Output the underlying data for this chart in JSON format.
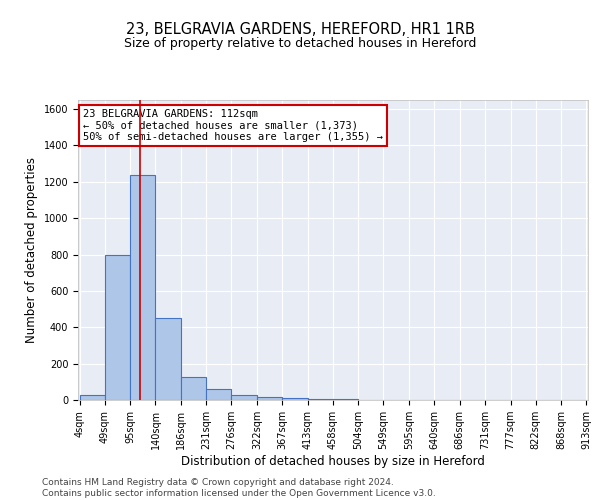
{
  "title": "23, BELGRAVIA GARDENS, HEREFORD, HR1 1RB",
  "subtitle": "Size of property relative to detached houses in Hereford",
  "xlabel": "Distribution of detached houses by size in Hereford",
  "ylabel": "Number of detached properties",
  "bar_values": [
    25,
    800,
    1240,
    450,
    125,
    60,
    27,
    18,
    12,
    5,
    3,
    2,
    1,
    0,
    0,
    0,
    0,
    0,
    0,
    0
  ],
  "bin_edges": [
    4,
    49,
    95,
    140,
    186,
    231,
    276,
    322,
    367,
    413,
    458,
    504,
    549,
    595,
    640,
    686,
    731,
    777,
    822,
    868,
    913
  ],
  "bar_color": "#aec6e8",
  "bar_edge_color": "#4472c4",
  "bar_edge_width": 0.8,
  "red_line_x": 112,
  "red_line_color": "#cc0000",
  "annotation_text": "23 BELGRAVIA GARDENS: 112sqm\n← 50% of detached houses are smaller (1,373)\n50% of semi-detached houses are larger (1,355) →",
  "annotation_box_color": "#cc0000",
  "annotation_text_color": "#000000",
  "annotation_fontsize": 7.5,
  "ylim": [
    0,
    1650
  ],
  "yticks": [
    0,
    200,
    400,
    600,
    800,
    1000,
    1200,
    1400,
    1600
  ],
  "background_color": "#e8edf5",
  "grid_color": "#ffffff",
  "title_fontsize": 10.5,
  "subtitle_fontsize": 9,
  "xlabel_fontsize": 8.5,
  "ylabel_fontsize": 8.5,
  "tick_fontsize": 7,
  "footer_line1": "Contains HM Land Registry data © Crown copyright and database right 2024.",
  "footer_line2": "Contains public sector information licensed under the Open Government Licence v3.0.",
  "footer_fontsize": 6.5
}
